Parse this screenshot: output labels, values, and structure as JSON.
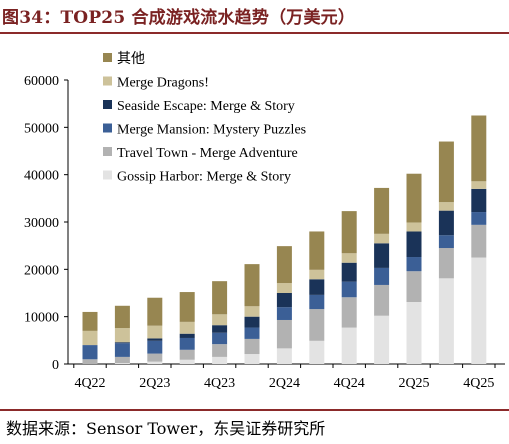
{
  "title": "图34：TOP25 合成游戏流水趋势（万美元）",
  "source": "数据来源：Sensor Tower，东吴证券研究所",
  "chart_data": {
    "type": "bar",
    "stacked": true,
    "categories": [
      "4Q22",
      "1Q23",
      "2Q23",
      "3Q23",
      "4Q23",
      "1Q24",
      "2Q24",
      "3Q24",
      "4Q24",
      "1Q25",
      "2Q25",
      "3Q25",
      "4Q25"
    ],
    "x_tick_labels": [
      "4Q22",
      "",
      "2Q23",
      "",
      "4Q23",
      "",
      "2Q24",
      "",
      "4Q24",
      "",
      "2Q25",
      "",
      "4Q25"
    ],
    "ylim": [
      0,
      60000
    ],
    "yticks": [
      0,
      10000,
      20000,
      30000,
      40000,
      50000,
      60000
    ],
    "grid": false,
    "legend_position": "top-left",
    "series": [
      {
        "name": "Gossip Harbor: Merge & Story",
        "color": "#e3e3e3",
        "values": [
          0,
          200,
          500,
          900,
          1500,
          2100,
          3300,
          4900,
          7700,
          10200,
          13100,
          18100,
          22500
        ]
      },
      {
        "name": "Travel Town - Merge Adventure",
        "color": "#b2b2b2",
        "values": [
          1000,
          1300,
          1700,
          2100,
          2700,
          3200,
          6000,
          6700,
          6400,
          6500,
          6500,
          6400,
          6900
        ]
      },
      {
        "name": "Merge Mansion: Mystery Puzzles",
        "color": "#3b5f96",
        "values": [
          3000,
          2900,
          2700,
          2500,
          2400,
          2400,
          2700,
          3000,
          3300,
          3600,
          3000,
          2700,
          2700
        ]
      },
      {
        "name": "Seaside Escape: Merge & Story",
        "color": "#1a3358",
        "values": [
          0,
          200,
          500,
          900,
          1600,
          2300,
          3000,
          3300,
          4000,
          5200,
          5400,
          5200,
          4900
        ]
      },
      {
        "name": "Merge Dragons!",
        "color": "#cdc29a",
        "values": [
          3000,
          3000,
          2700,
          2500,
          2300,
          2200,
          2100,
          2000,
          2000,
          2000,
          1900,
          1800,
          1600
        ]
      },
      {
        "name": "其他",
        "color": "#978651",
        "values": [
          4000,
          4700,
          5900,
          6300,
          7000,
          8900,
          7800,
          8100,
          8900,
          9700,
          10300,
          12800,
          13900
        ]
      }
    ]
  }
}
